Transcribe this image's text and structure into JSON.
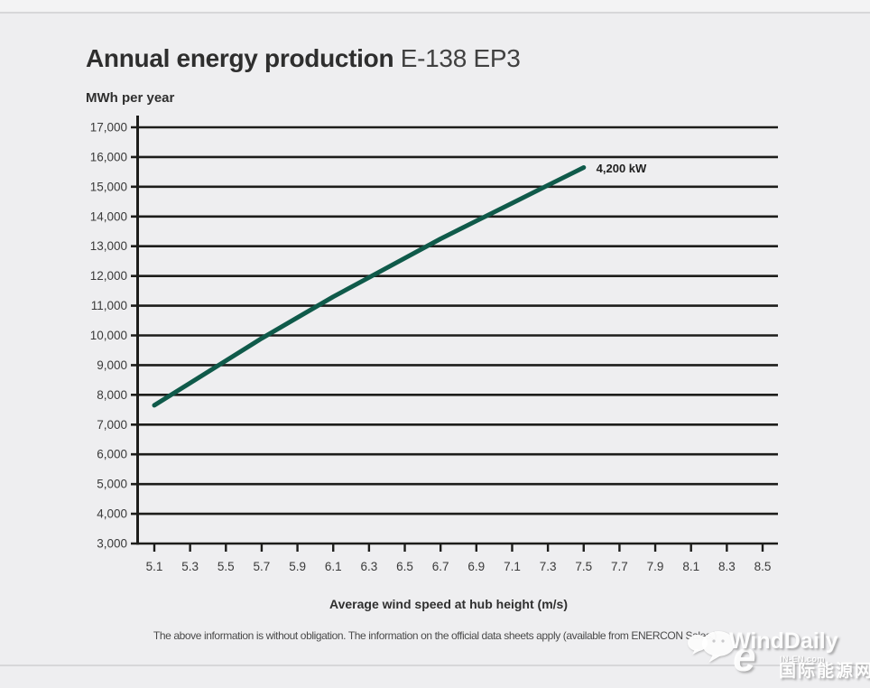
{
  "header": {
    "title_main": "Annual energy production",
    "title_model": "E-138 EP3",
    "y_axis_unit": "MWh per year"
  },
  "chart_data": {
    "type": "line",
    "title": "Annual energy production E-138 EP3",
    "xlabel": "Average wind speed at hub height (m/s)",
    "ylabel": "MWh per year",
    "grid": "horizontal",
    "xlim": [
      5.1,
      8.5
    ],
    "ylim": [
      3000,
      17000
    ],
    "x_ticks": [
      5.1,
      5.3,
      5.5,
      5.7,
      5.9,
      6.1,
      6.3,
      6.5,
      6.7,
      6.9,
      7.1,
      7.3,
      7.5,
      7.7,
      7.9,
      8.1,
      8.3,
      8.5
    ],
    "y_ticks": [
      3000,
      4000,
      5000,
      6000,
      7000,
      8000,
      9000,
      10000,
      11000,
      12000,
      13000,
      14000,
      15000,
      16000,
      17000
    ],
    "y_tick_labels": [
      "3,000",
      "4,000",
      "5,000",
      "6,000",
      "7,000",
      "8,000",
      "9,000",
      "10,000",
      "11,000",
      "12,000",
      "13,000",
      "14,000",
      "15,000",
      "16,000",
      "17,000"
    ],
    "series": [
      {
        "name": "4,200 kW",
        "color": "#0f5a4a",
        "x": [
          5.1,
          5.3,
          5.5,
          5.7,
          5.9,
          6.1,
          6.3,
          6.5,
          6.7,
          6.9,
          7.1,
          7.3,
          7.5
        ],
        "values": [
          7650,
          8400,
          9150,
          9900,
          10600,
          11300,
          11950,
          12600,
          13250,
          13850,
          14450,
          15050,
          15650
        ]
      }
    ],
    "annotation": {
      "label": "4,200 kW",
      "x": 7.57,
      "y": 15480
    }
  },
  "footer": {
    "note": "The above information is without obligation. The information on the official data sheets apply (available from ENERCON Sales.)"
  },
  "watermark": {
    "brand": "WindDaily",
    "site": "IN-EN.com",
    "site_name_cn": "国际能源网",
    "logo_letter": "e"
  },
  "colors": {
    "line": "#0f5a4a",
    "grid": "#1d1d1b",
    "background": "#eeeef0"
  }
}
